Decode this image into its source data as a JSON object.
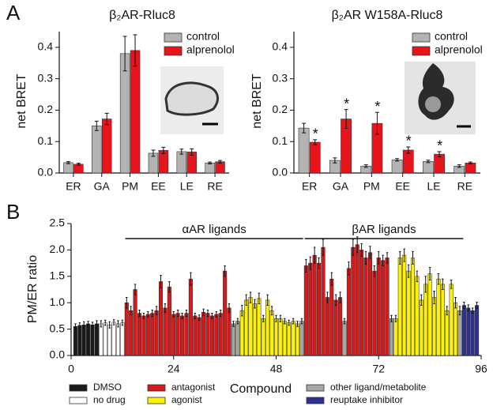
{
  "panels": [
    "A",
    "B"
  ],
  "chart_data": [
    {
      "type": "bar",
      "title": "β₂AR-Rluc8",
      "y_label": "net BRET",
      "categories": [
        "ER",
        "GA",
        "PM",
        "EE",
        "LE",
        "RE"
      ],
      "series": [
        {
          "name": "control",
          "color": "#b3b3b3",
          "values": [
            0.033,
            0.15,
            0.38,
            0.063,
            0.068,
            0.032
          ],
          "errors": [
            0.003,
            0.015,
            0.055,
            0.01,
            0.008,
            0.003
          ]
        },
        {
          "name": "alprenolol",
          "color": "#e8141c",
          "values": [
            0.028,
            0.172,
            0.39,
            0.072,
            0.067,
            0.036
          ],
          "errors": [
            0.003,
            0.018,
            0.05,
            0.01,
            0.01,
            0.004
          ]
        }
      ],
      "ylim": [
        0,
        0.45
      ],
      "yticks": [
        {
          "value": 0,
          "label": "0.0"
        },
        0.1,
        0.2,
        0.3,
        0.4
      ],
      "legend": "upper right"
    },
    {
      "type": "bar",
      "title": "β₂AR W158A-Rluc8",
      "y_label": "net BRET",
      "categories": [
        "ER",
        "GA",
        "PM",
        "EE",
        "LE",
        "RE"
      ],
      "series": [
        {
          "name": "control",
          "color": "#b3b3b3",
          "values": [
            0.143,
            0.04,
            0.022,
            0.042,
            0.037,
            0.022
          ],
          "errors": [
            0.015,
            0.008,
            0.004,
            0.004,
            0.004,
            0.004
          ]
        },
        {
          "name": "alprenolol",
          "color": "#e8141c",
          "values": [
            0.098,
            0.172,
            0.158,
            0.073,
            0.06,
            0.032
          ],
          "errors": [
            0.008,
            0.03,
            0.035,
            0.01,
            0.008,
            0.003
          ],
          "markers": [
            "*",
            "*",
            "*",
            "*",
            "*",
            null
          ]
        }
      ],
      "ylim": [
        0,
        0.45
      ],
      "yticks": [
        {
          "value": 0,
          "label": "0.0"
        },
        0.1,
        0.2,
        0.3,
        0.4
      ],
      "legend": "upper right"
    },
    {
      "type": "bar",
      "y_label": "PM/ER ratio",
      "x_label": "Compound",
      "xlim": [
        0,
        96
      ],
      "xticks": [
        0,
        24,
        48,
        72,
        96
      ],
      "ylim": [
        0,
        2.5
      ],
      "yticks": [
        {
          "value": 0,
          "label": "0.0"
        },
        0.5,
        {
          "value": 1,
          "label": "1.0"
        },
        1.5,
        {
          "value": 2,
          "label": "2.0"
        },
        2.5
      ],
      "annotations": [
        {
          "text": "αAR ligands",
          "span": [
            12.5,
            54.5
          ]
        },
        {
          "text": "βAR ligands",
          "span": [
            54.5,
            92
          ]
        }
      ],
      "series": [
        {
          "name": "DMSO",
          "color": "#1a1a1a",
          "x": [
            1,
            2,
            3,
            4,
            5,
            6
          ],
          "values": [
            0.55,
            0.57,
            0.58,
            0.6,
            0.58,
            0.6
          ],
          "errors": [
            0.05,
            0.05,
            0.06,
            0.05,
            0.05,
            0.06
          ]
        },
        {
          "name": "no drug",
          "color": "#ffffff",
          "x": [
            7,
            8,
            9,
            10,
            11,
            12
          ],
          "values": [
            0.6,
            0.62,
            0.58,
            0.63,
            0.6,
            0.62
          ],
          "errors": [
            0.06,
            0.05,
            0.06,
            0.05,
            0.06,
            0.05
          ]
        },
        {
          "name": "antagonist",
          "color": "#d7191c",
          "x": [
            13,
            14,
            15,
            16,
            17,
            18,
            19,
            20,
            21,
            22,
            23,
            24,
            25,
            26,
            27,
            28,
            29,
            30,
            31,
            32,
            33,
            34,
            35,
            36,
            37,
            55,
            56,
            57,
            58,
            59,
            60,
            61,
            62,
            63,
            65,
            66,
            67,
            68,
            69,
            70,
            71,
            72,
            73,
            74
          ],
          "values": [
            1.0,
            0.85,
            1.25,
            0.8,
            0.75,
            0.78,
            0.8,
            0.85,
            1.4,
            0.9,
            1.3,
            0.78,
            0.8,
            0.75,
            0.8,
            1.45,
            0.75,
            0.72,
            0.82,
            0.8,
            0.75,
            0.78,
            0.8,
            1.6,
            0.9,
            1.7,
            1.75,
            1.9,
            1.75,
            2.05,
            1.1,
            1.45,
            1.05,
            1.1,
            1.65,
            2.05,
            2.1,
            2.0,
            1.85,
            1.95,
            1.6,
            1.85,
            1.8,
            1.85
          ],
          "errors": [
            0.1,
            0.08,
            0.1,
            0.06,
            0.05,
            0.05,
            0.06,
            0.08,
            0.12,
            0.08,
            0.1,
            0.05,
            0.06,
            0.05,
            0.06,
            0.12,
            0.05,
            0.05,
            0.06,
            0.06,
            0.05,
            0.05,
            0.06,
            0.1,
            0.08,
            0.12,
            0.12,
            0.15,
            0.1,
            0.15,
            0.1,
            0.12,
            0.1,
            0.1,
            0.12,
            0.15,
            0.15,
            0.12,
            0.12,
            0.12,
            0.1,
            0.12,
            0.1,
            0.1
          ]
        },
        {
          "name": "agonist",
          "color": "#fff200",
          "x": [
            40,
            41,
            42,
            43,
            44,
            45,
            46,
            47,
            48,
            49,
            50,
            51,
            52,
            53,
            76,
            77,
            78,
            79,
            80,
            81,
            82,
            83,
            84,
            85,
            86,
            87,
            88,
            89,
            90
          ],
          "values": [
            0.85,
            1.05,
            1.1,
            0.98,
            1.08,
            0.7,
            1.05,
            0.85,
            0.7,
            0.7,
            0.65,
            0.62,
            0.65,
            0.6,
            0.7,
            1.85,
            1.9,
            1.6,
            1.85,
            1.5,
            1.05,
            1.35,
            1.55,
            1.1,
            1.45,
            1.35,
            0.85,
            1.35,
            1.0
          ],
          "errors": [
            0.1,
            0.1,
            0.1,
            0.08,
            0.1,
            0.06,
            0.1,
            0.08,
            0.06,
            0.06,
            0.05,
            0.05,
            0.05,
            0.05,
            0.06,
            0.12,
            0.12,
            0.12,
            0.12,
            0.1,
            0.1,
            0.15,
            0.12,
            0.12,
            0.1,
            0.1,
            0.08,
            0.08,
            0.1
          ]
        },
        {
          "name": "other ligand/metabolite",
          "color": "#a6a6a6",
          "x": [
            38,
            39,
            54,
            64,
            75,
            91
          ],
          "values": [
            0.6,
            0.65,
            0.65,
            0.65,
            0.7,
            0.85
          ],
          "errors": [
            0.05,
            0.05,
            0.05,
            0.05,
            0.06,
            0.08
          ]
        },
        {
          "name": "reuptake inhibitor",
          "color": "#2e3192",
          "x": [
            92,
            93,
            94,
            95
          ],
          "values": [
            0.95,
            0.9,
            0.85,
            0.95
          ],
          "errors": [
            0.06,
            0.06,
            0.05,
            0.06
          ]
        }
      ],
      "legend": "bottom"
    }
  ]
}
